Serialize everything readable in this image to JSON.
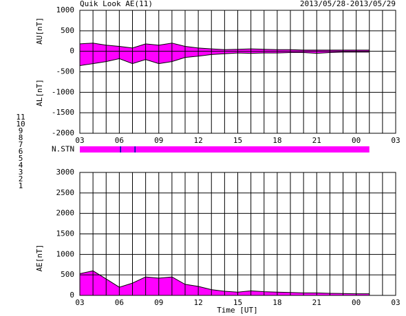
{
  "header": {
    "title": "Quik Look AE(11)",
    "date_range": "2013/05/28-2013/05/29",
    "x_label": "Time [UT]"
  },
  "levels": [
    11,
    10,
    9,
    8,
    7,
    6,
    5,
    4,
    3,
    2,
    1
  ],
  "level_colors": [
    "#00d8d8",
    "#ff00ff",
    "#0000b0",
    "#e8e870",
    "#b8d838",
    "#ff0000",
    "#c8c8c8",
    "#8888a8",
    "#20a0a0",
    "#9000c0",
    "#0000ff"
  ],
  "chart_data": [
    {
      "type": "area",
      "y_labels": [
        "AU[nT]",
        "AL[nT]"
      ],
      "line_color": "#000000",
      "x": [
        3,
        4,
        5,
        6,
        7,
        8,
        9,
        10,
        11,
        12,
        13,
        14,
        15,
        16,
        17,
        18,
        19,
        20,
        21,
        22,
        23,
        24,
        25
      ],
      "series": [
        {
          "name": "AU",
          "color": "#ff00ff",
          "values": [
            180,
            200,
            150,
            120,
            80,
            180,
            150,
            200,
            120,
            80,
            60,
            40,
            50,
            60,
            50,
            40,
            40,
            30,
            30,
            30,
            30,
            30,
            30
          ]
        },
        {
          "name": "AL",
          "color": "#ff00ff",
          "values": [
            -350,
            -300,
            -250,
            -180,
            -300,
            -200,
            -300,
            -250,
            -150,
            -120,
            -80,
            -60,
            -40,
            -50,
            -40,
            -40,
            -30,
            -30,
            -50,
            -30,
            -20,
            -20,
            -20
          ]
        }
      ],
      "xlim": [
        3,
        27
      ],
      "ylim": [
        -2000,
        1000
      ],
      "xticks": [
        {
          "value": 3,
          "label": "03"
        },
        {
          "value": 6,
          "label": "06"
        },
        {
          "value": 9,
          "label": "09"
        },
        12,
        15,
        18,
        21,
        {
          "value": 24,
          "label": "00"
        },
        {
          "value": 27,
          "label": "03"
        }
      ],
      "xgrid": [
        3,
        4,
        5,
        6,
        7,
        8,
        9,
        10,
        11,
        12,
        13,
        14,
        15,
        16,
        17,
        18,
        19,
        20,
        21,
        22,
        23,
        24,
        25,
        26,
        27
      ],
      "yticks": [
        1000,
        500,
        0,
        -500,
        -1000,
        -1500,
        -2000
      ],
      "grid": true
    },
    {
      "type": "strip",
      "y_label": "N.STN",
      "bins": [
        3,
        6.05,
        6.15,
        7.15,
        7.25,
        25
      ],
      "values": [
        10,
        9,
        10,
        9,
        10
      ],
      "xlim": [
        3,
        27
      ]
    },
    {
      "type": "area",
      "y_labels": [
        "AE[nT]"
      ],
      "line_color": "#000000",
      "x": [
        3,
        4,
        5,
        6,
        7,
        8,
        9,
        10,
        11,
        12,
        13,
        14,
        15,
        16,
        17,
        18,
        19,
        20,
        21,
        22,
        23,
        24,
        25
      ],
      "series": [
        {
          "name": "AE",
          "color": "#ff00ff",
          "values": [
            530,
            600,
            400,
            200,
            300,
            450,
            420,
            450,
            270,
            220,
            140,
            100,
            80,
            110,
            90,
            80,
            70,
            60,
            60,
            50,
            45,
            40,
            40
          ]
        }
      ],
      "xlim": [
        3,
        27
      ],
      "ylim": [
        0,
        3000
      ],
      "xticks": [
        {
          "value": 3,
          "label": "03"
        },
        {
          "value": 6,
          "label": "06"
        },
        {
          "value": 9,
          "label": "09"
        },
        12,
        15,
        18,
        21,
        {
          "value": 24,
          "label": "00"
        },
        {
          "value": 27,
          "label": "03"
        }
      ],
      "xgrid": [
        3,
        4,
        5,
        6,
        7,
        8,
        9,
        10,
        11,
        12,
        13,
        14,
        15,
        16,
        17,
        18,
        19,
        20,
        21,
        22,
        23,
        24,
        25,
        26,
        27
      ],
      "yticks": [
        3000,
        2500,
        2000,
        1500,
        1000,
        500,
        0
      ],
      "grid": true
    }
  ]
}
